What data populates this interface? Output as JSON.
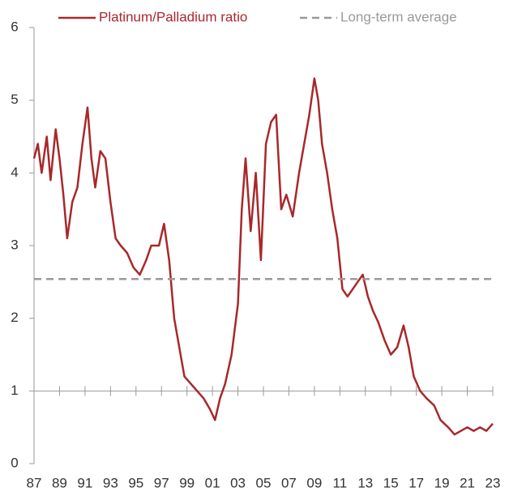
{
  "chart_data": {
    "type": "line",
    "series": [
      {
        "name": "Platinum/Palladium ratio",
        "color": "#a8282a",
        "x": [
          1987.0,
          1987.3,
          1987.6,
          1988.0,
          1988.3,
          1988.7,
          1989.0,
          1989.3,
          1989.6,
          1990.0,
          1990.4,
          1990.8,
          1991.2,
          1991.5,
          1991.8,
          1992.2,
          1992.6,
          1993.0,
          1993.4,
          1993.8,
          1994.3,
          1994.8,
          1995.3,
          1995.8,
          1996.2,
          1996.8,
          1997.2,
          1997.6,
          1998.0,
          1998.4,
          1998.8,
          1999.3,
          1999.8,
          2000.3,
          2000.8,
          2001.2,
          2001.6,
          2002.0,
          2002.5,
          2003.0,
          2003.3,
          2003.6,
          2004.0,
          2004.4,
          2004.8,
          2005.2,
          2005.6,
          2006.0,
          2006.4,
          2006.8,
          2007.3,
          2007.8,
          2008.2,
          2008.6,
          2009.0,
          2009.3,
          2009.6,
          2010.0,
          2010.4,
          2010.8,
          2011.2,
          2011.6,
          2012.0,
          2012.4,
          2012.8,
          2013.2,
          2013.6,
          2014.0,
          2014.5,
          2015.0,
          2015.5,
          2016.0,
          2016.4,
          2016.8,
          2017.3,
          2017.8,
          2018.4,
          2018.9,
          2019.5,
          2020.0,
          2020.5,
          2021.0,
          2021.5,
          2022.0,
          2022.5,
          2023.0
        ],
        "values": [
          4.2,
          4.4,
          4.0,
          4.5,
          3.9,
          4.6,
          4.2,
          3.7,
          3.1,
          3.6,
          3.8,
          4.4,
          4.9,
          4.2,
          3.8,
          4.3,
          4.2,
          3.6,
          3.1,
          3.0,
          2.9,
          2.7,
          2.6,
          2.8,
          3.0,
          3.0,
          3.3,
          2.8,
          2.0,
          1.6,
          1.2,
          1.1,
          1.0,
          0.9,
          0.75,
          0.6,
          0.9,
          1.1,
          1.5,
          2.2,
          3.5,
          4.2,
          3.2,
          4.0,
          2.8,
          4.4,
          4.7,
          4.8,
          3.5,
          3.7,
          3.4,
          4.0,
          4.4,
          4.8,
          5.3,
          5.0,
          4.4,
          4.0,
          3.5,
          3.1,
          2.4,
          2.3,
          2.4,
          2.5,
          2.6,
          2.3,
          2.1,
          1.95,
          1.7,
          1.5,
          1.6,
          1.9,
          1.6,
          1.2,
          1.0,
          0.9,
          0.8,
          0.6,
          0.5,
          0.4,
          0.45,
          0.5,
          0.45,
          0.5,
          0.45,
          0.55
        ]
      },
      {
        "name": "Long-term average",
        "color": "#999999",
        "dashed": true,
        "y": 2.54
      }
    ],
    "xlim": [
      1987,
      2023
    ],
    "xticks": [
      {
        "value": 1987,
        "label": "87"
      },
      {
        "value": 1989,
        "label": "89"
      },
      {
        "value": 1991,
        "label": "91"
      },
      {
        "value": 1993,
        "label": "93"
      },
      {
        "value": 1995,
        "label": "95"
      },
      {
        "value": 1997,
        "label": "97"
      },
      {
        "value": 1999,
        "label": "99"
      },
      {
        "value": 2001,
        "label": "01"
      },
      {
        "value": 2003,
        "label": "03"
      },
      {
        "value": 2005,
        "label": "05"
      },
      {
        "value": 2007,
        "label": "07"
      },
      {
        "value": 2009,
        "label": "09"
      },
      {
        "value": 2011,
        "label": "11"
      },
      {
        "value": 2013,
        "label": "13"
      },
      {
        "value": 2015,
        "label": "15"
      },
      {
        "value": 2017,
        "label": "17"
      },
      {
        "value": 2019,
        "label": "19"
      },
      {
        "value": 2021,
        "label": "21"
      },
      {
        "value": 2023,
        "label": "23"
      }
    ],
    "ylim": [
      0,
      6
    ],
    "yticks": [
      0,
      1,
      2,
      3,
      4,
      5,
      6
    ],
    "x_axis_at": 1
  }
}
